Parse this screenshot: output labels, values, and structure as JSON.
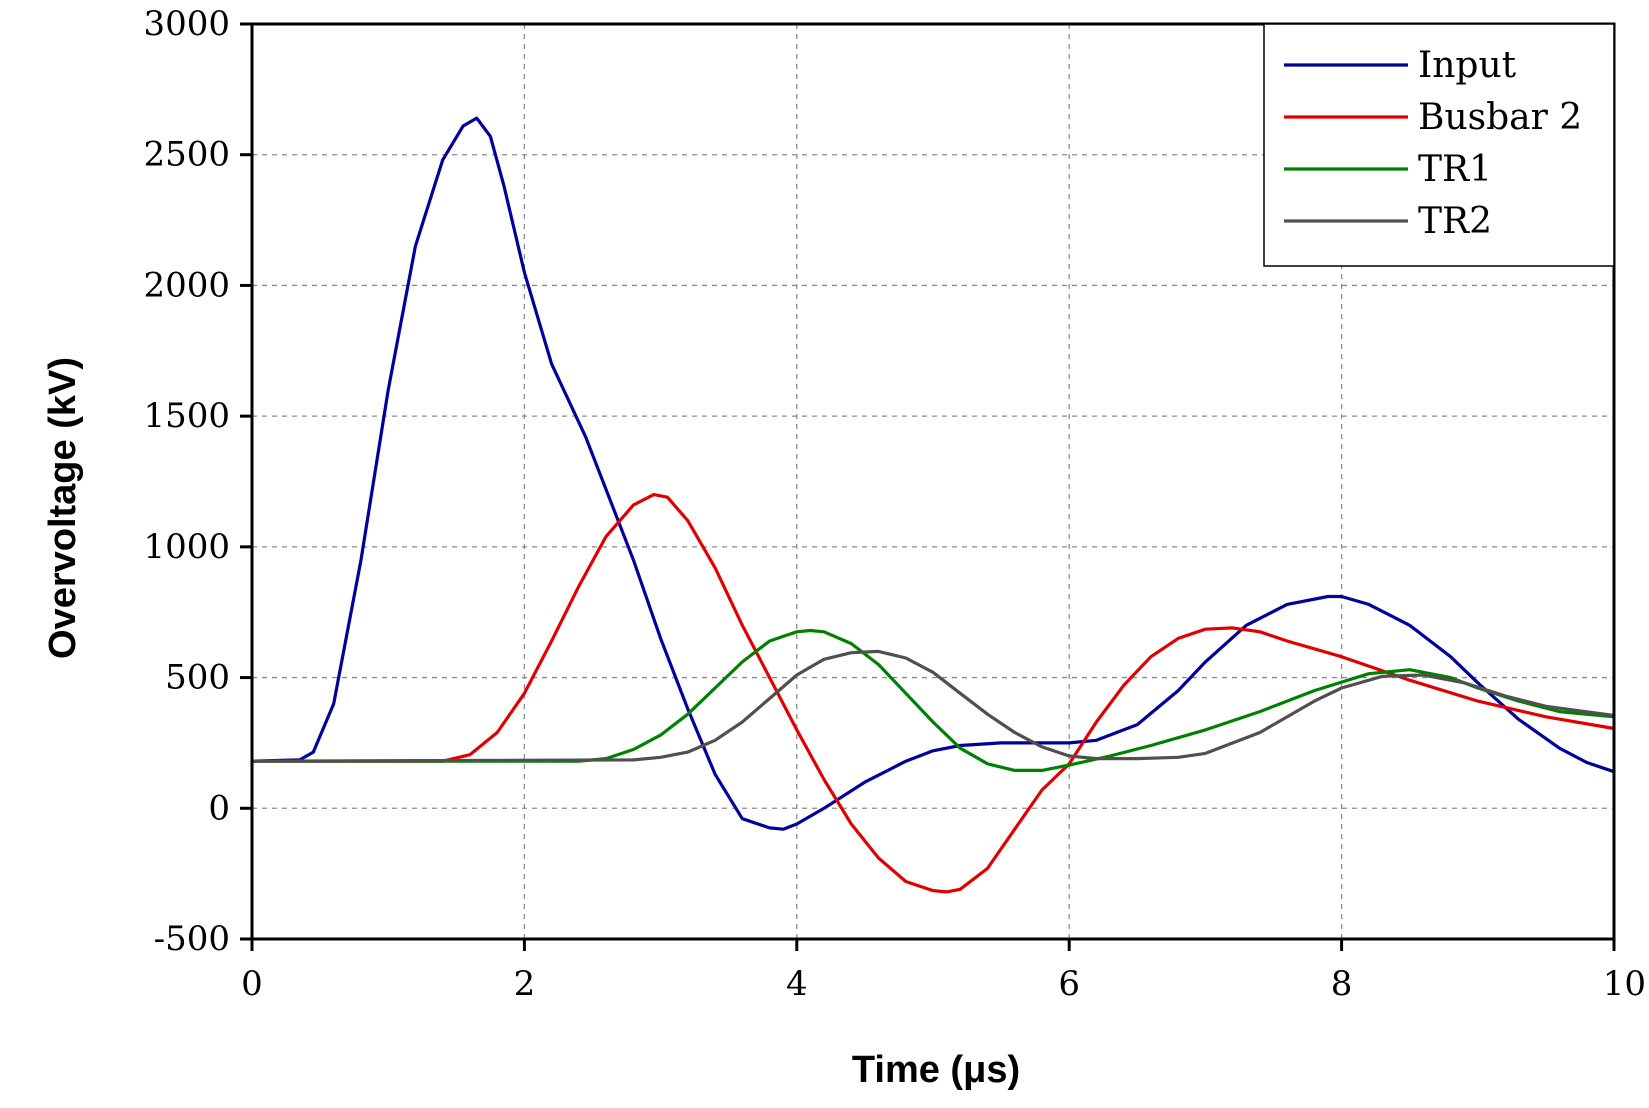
{
  "chart_data": {
    "type": "line",
    "title": "",
    "xlabel": "Time (μs)",
    "ylabel": "Overvoltage (kV)",
    "xlim": [
      0,
      10
    ],
    "ylim": [
      -500,
      3000
    ],
    "xticks": [
      0,
      2,
      4,
      6,
      8,
      10
    ],
    "yticks": [
      -500,
      0,
      500,
      1000,
      1500,
      2000,
      2500,
      3000
    ],
    "grid": true,
    "legend_position": "top-right",
    "series": [
      {
        "name": "Input",
        "color": "#00009b",
        "x": [
          0,
          0.35,
          0.45,
          0.6,
          0.8,
          1.0,
          1.2,
          1.4,
          1.55,
          1.65,
          1.75,
          1.85,
          2.0,
          2.2,
          2.45,
          2.8,
          3.0,
          3.2,
          3.4,
          3.6,
          3.8,
          3.9,
          4.0,
          4.2,
          4.5,
          4.8,
          5.0,
          5.2,
          5.5,
          5.8,
          6.0,
          6.2,
          6.5,
          6.8,
          7.0,
          7.3,
          7.6,
          7.9,
          8.0,
          8.2,
          8.5,
          8.8,
          9.0,
          9.3,
          9.6,
          9.8,
          10.0
        ],
        "y": [
          180,
          185,
          215,
          400,
          950,
          1600,
          2150,
          2480,
          2610,
          2640,
          2570,
          2380,
          2050,
          1700,
          1420,
          950,
          650,
          380,
          130,
          -40,
          -75,
          -80,
          -60,
          0,
          100,
          180,
          220,
          240,
          250,
          250,
          250,
          260,
          320,
          450,
          560,
          700,
          780,
          810,
          810,
          780,
          700,
          580,
          480,
          340,
          230,
          175,
          140
        ]
      },
      {
        "name": "Busbar 2",
        "color": "#e00000",
        "x": [
          0,
          1.4,
          1.6,
          1.8,
          2.0,
          2.2,
          2.4,
          2.6,
          2.8,
          2.95,
          3.05,
          3.2,
          3.4,
          3.6,
          3.8,
          4.0,
          4.2,
          4.4,
          4.6,
          4.8,
          5.0,
          5.1,
          5.2,
          5.4,
          5.6,
          5.8,
          6.0,
          6.2,
          6.4,
          6.6,
          6.8,
          7.0,
          7.2,
          7.4,
          7.6,
          8.0,
          8.5,
          9.0,
          9.5,
          10.0
        ],
        "y": [
          180,
          180,
          205,
          290,
          440,
          640,
          850,
          1040,
          1160,
          1200,
          1190,
          1100,
          920,
          700,
          500,
          300,
          110,
          -60,
          -190,
          -280,
          -315,
          -320,
          -310,
          -230,
          -80,
          70,
          170,
          330,
          470,
          580,
          650,
          685,
          690,
          675,
          640,
          580,
          490,
          410,
          350,
          305
        ]
      },
      {
        "name": "TR1",
        "color": "#008000",
        "x": [
          0,
          2.4,
          2.6,
          2.8,
          3.0,
          3.2,
          3.4,
          3.6,
          3.8,
          4.0,
          4.1,
          4.2,
          4.4,
          4.6,
          4.8,
          5.0,
          5.2,
          5.4,
          5.6,
          5.8,
          6.0,
          6.3,
          6.6,
          7.0,
          7.4,
          7.8,
          8.2,
          8.5,
          8.8,
          9.0,
          9.3,
          9.6,
          10.0
        ],
        "y": [
          180,
          180,
          190,
          225,
          280,
          360,
          460,
          560,
          640,
          675,
          680,
          675,
          630,
          550,
          440,
          330,
          230,
          170,
          145,
          145,
          165,
          200,
          240,
          300,
          370,
          450,
          515,
          530,
          500,
          460,
          410,
          370,
          350
        ]
      },
      {
        "name": "TR2",
        "color": "#505050",
        "x": [
          0,
          2.8,
          3.0,
          3.2,
          3.4,
          3.6,
          3.8,
          4.0,
          4.2,
          4.4,
          4.6,
          4.8,
          5.0,
          5.2,
          5.4,
          5.6,
          5.8,
          6.0,
          6.2,
          6.5,
          6.8,
          7.0,
          7.4,
          7.8,
          8.0,
          8.3,
          8.6,
          8.9,
          9.2,
          9.5,
          10.0
        ],
        "y": [
          180,
          185,
          195,
          215,
          260,
          330,
          420,
          510,
          570,
          595,
          600,
          575,
          520,
          440,
          360,
          290,
          235,
          200,
          190,
          190,
          195,
          210,
          290,
          410,
          460,
          505,
          510,
          480,
          430,
          390,
          355
        ]
      }
    ]
  }
}
